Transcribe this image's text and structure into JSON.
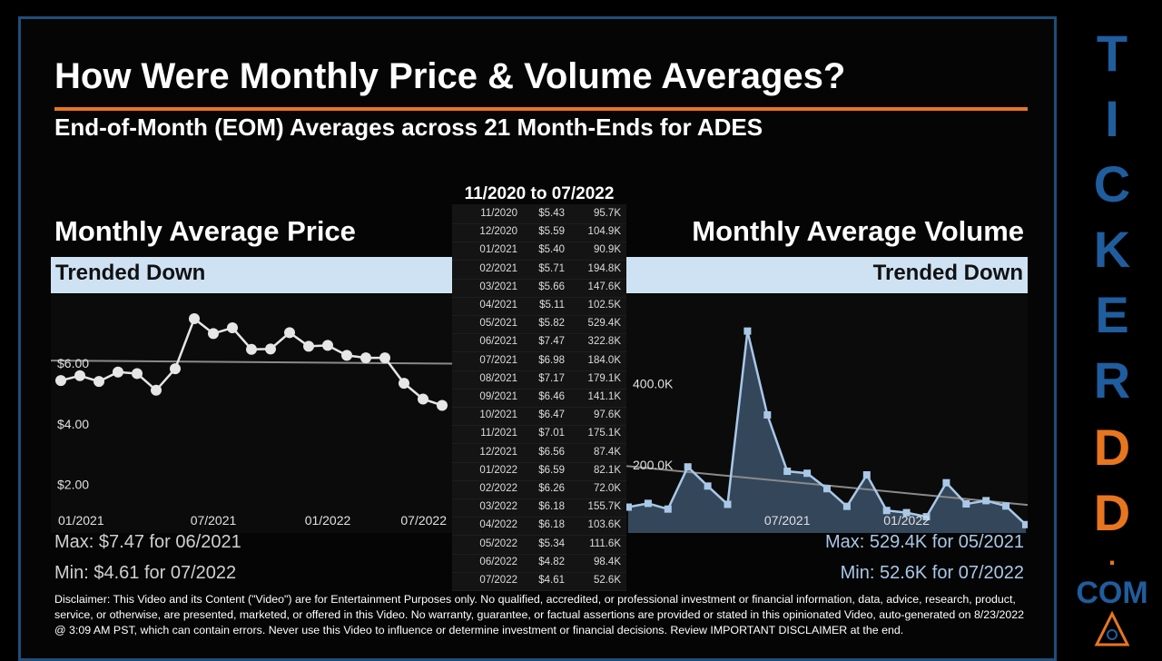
{
  "header": {
    "title": "How Were Monthly Price & Volume Averages?",
    "subtitle": "End-of-Month (EOM) Averages across 21 Month-Ends for ADES"
  },
  "table": {
    "title": "11/2020 to 07/2022",
    "rows": [
      [
        "11/2020",
        "$5.43",
        "95.7K"
      ],
      [
        "12/2020",
        "$5.59",
        "104.9K"
      ],
      [
        "01/2021",
        "$5.40",
        "90.9K"
      ],
      [
        "02/2021",
        "$5.71",
        "194.8K"
      ],
      [
        "03/2021",
        "$5.66",
        "147.6K"
      ],
      [
        "04/2021",
        "$5.11",
        "102.5K"
      ],
      [
        "05/2021",
        "$5.82",
        "529.4K"
      ],
      [
        "06/2021",
        "$7.47",
        "322.8K"
      ],
      [
        "07/2021",
        "$6.98",
        "184.0K"
      ],
      [
        "08/2021",
        "$7.17",
        "179.1K"
      ],
      [
        "09/2021",
        "$6.46",
        "141.1K"
      ],
      [
        "10/2021",
        "$6.47",
        "97.6K"
      ],
      [
        "11/2021",
        "$7.01",
        "175.1K"
      ],
      [
        "12/2021",
        "$6.56",
        "87.4K"
      ],
      [
        "01/2022",
        "$6.59",
        "82.1K"
      ],
      [
        "02/2022",
        "$6.26",
        "72.0K"
      ],
      [
        "03/2022",
        "$6.18",
        "155.7K"
      ],
      [
        "04/2022",
        "$6.18",
        "103.6K"
      ],
      [
        "05/2022",
        "$5.34",
        "111.6K"
      ],
      [
        "06/2022",
        "$4.82",
        "98.4K"
      ],
      [
        "07/2022",
        "$4.61",
        "52.6K"
      ]
    ]
  },
  "chart_data": [
    {
      "type": "line",
      "title": "Monthly Average Price",
      "subtitle": "Trended Down",
      "categories": [
        null,
        null,
        "01/2021",
        null,
        null,
        null,
        null,
        null,
        "07/2021",
        null,
        null,
        null,
        null,
        null,
        "01/2022",
        null,
        null,
        null,
        null,
        null,
        "07/2022"
      ],
      "values": [
        5.43,
        5.59,
        5.4,
        5.71,
        5.66,
        5.11,
        5.82,
        7.47,
        6.98,
        7.17,
        6.46,
        6.47,
        7.01,
        6.56,
        6.59,
        6.26,
        6.18,
        6.18,
        5.34,
        4.82,
        4.61
      ],
      "color": "#e6e6e6",
      "trend_color": "#8a8a8a",
      "ylim": [
        0.4,
        8.25
      ],
      "yticks": [
        {
          "value": 2,
          "label": "$2.00"
        },
        {
          "value": 4,
          "label": "$4.00"
        },
        {
          "value": 6,
          "label": "$6.00"
        }
      ],
      "notes": [
        "Max: $7.47 for 06/2021",
        "Min: $4.61 for 07/2022"
      ]
    },
    {
      "type": "area",
      "title": "Monthly Average Volume",
      "subtitle": "Trended Down",
      "categories": [
        null,
        null,
        null,
        null,
        null,
        null,
        null,
        null,
        "07/2021",
        null,
        null,
        null,
        null,
        null,
        "01/2022",
        null,
        null,
        null,
        null,
        null,
        null
      ],
      "values": [
        95700,
        104900,
        90900,
        194800,
        147600,
        102500,
        529400,
        322800,
        184000,
        179100,
        141100,
        97600,
        175100,
        87400,
        82100,
        72000,
        155700,
        103600,
        111600,
        98400,
        52600
      ],
      "color": "#a9c8e8",
      "fill": "#34465a",
      "trend_color": "#8a8a8a",
      "ylim": [
        32000,
        618000
      ],
      "yticks": [
        {
          "value": 200000,
          "label": "200.0K"
        },
        {
          "value": 400000,
          "label": "400.0K"
        }
      ],
      "notes": [
        "Max: 529.4K for 05/2021",
        "Min: 52.6K for 07/2022"
      ]
    }
  ],
  "disclaimer": "Disclaimer: This Video and its Content (\"Video\") are for Entertainment Purposes only. No qualified, accredited, or professional investment or financial information, data, advice, research, product, service, or otherwise, are presented, marketed, or offered in this Video. No warranty, guarantee, or factual assertions are provided or stated in this opinionated Video, auto-generated on 8/23/2022 @ 3:09 AM PST, which can contain errors. Never use this Video to influence or determine investment or financial decisions. Review IMPORTANT DISCLAIMER at the end.",
  "brand": [
    "T",
    "I",
    "C",
    "K",
    "E",
    "R",
    "D",
    "D",
    ".",
    "COM"
  ]
}
